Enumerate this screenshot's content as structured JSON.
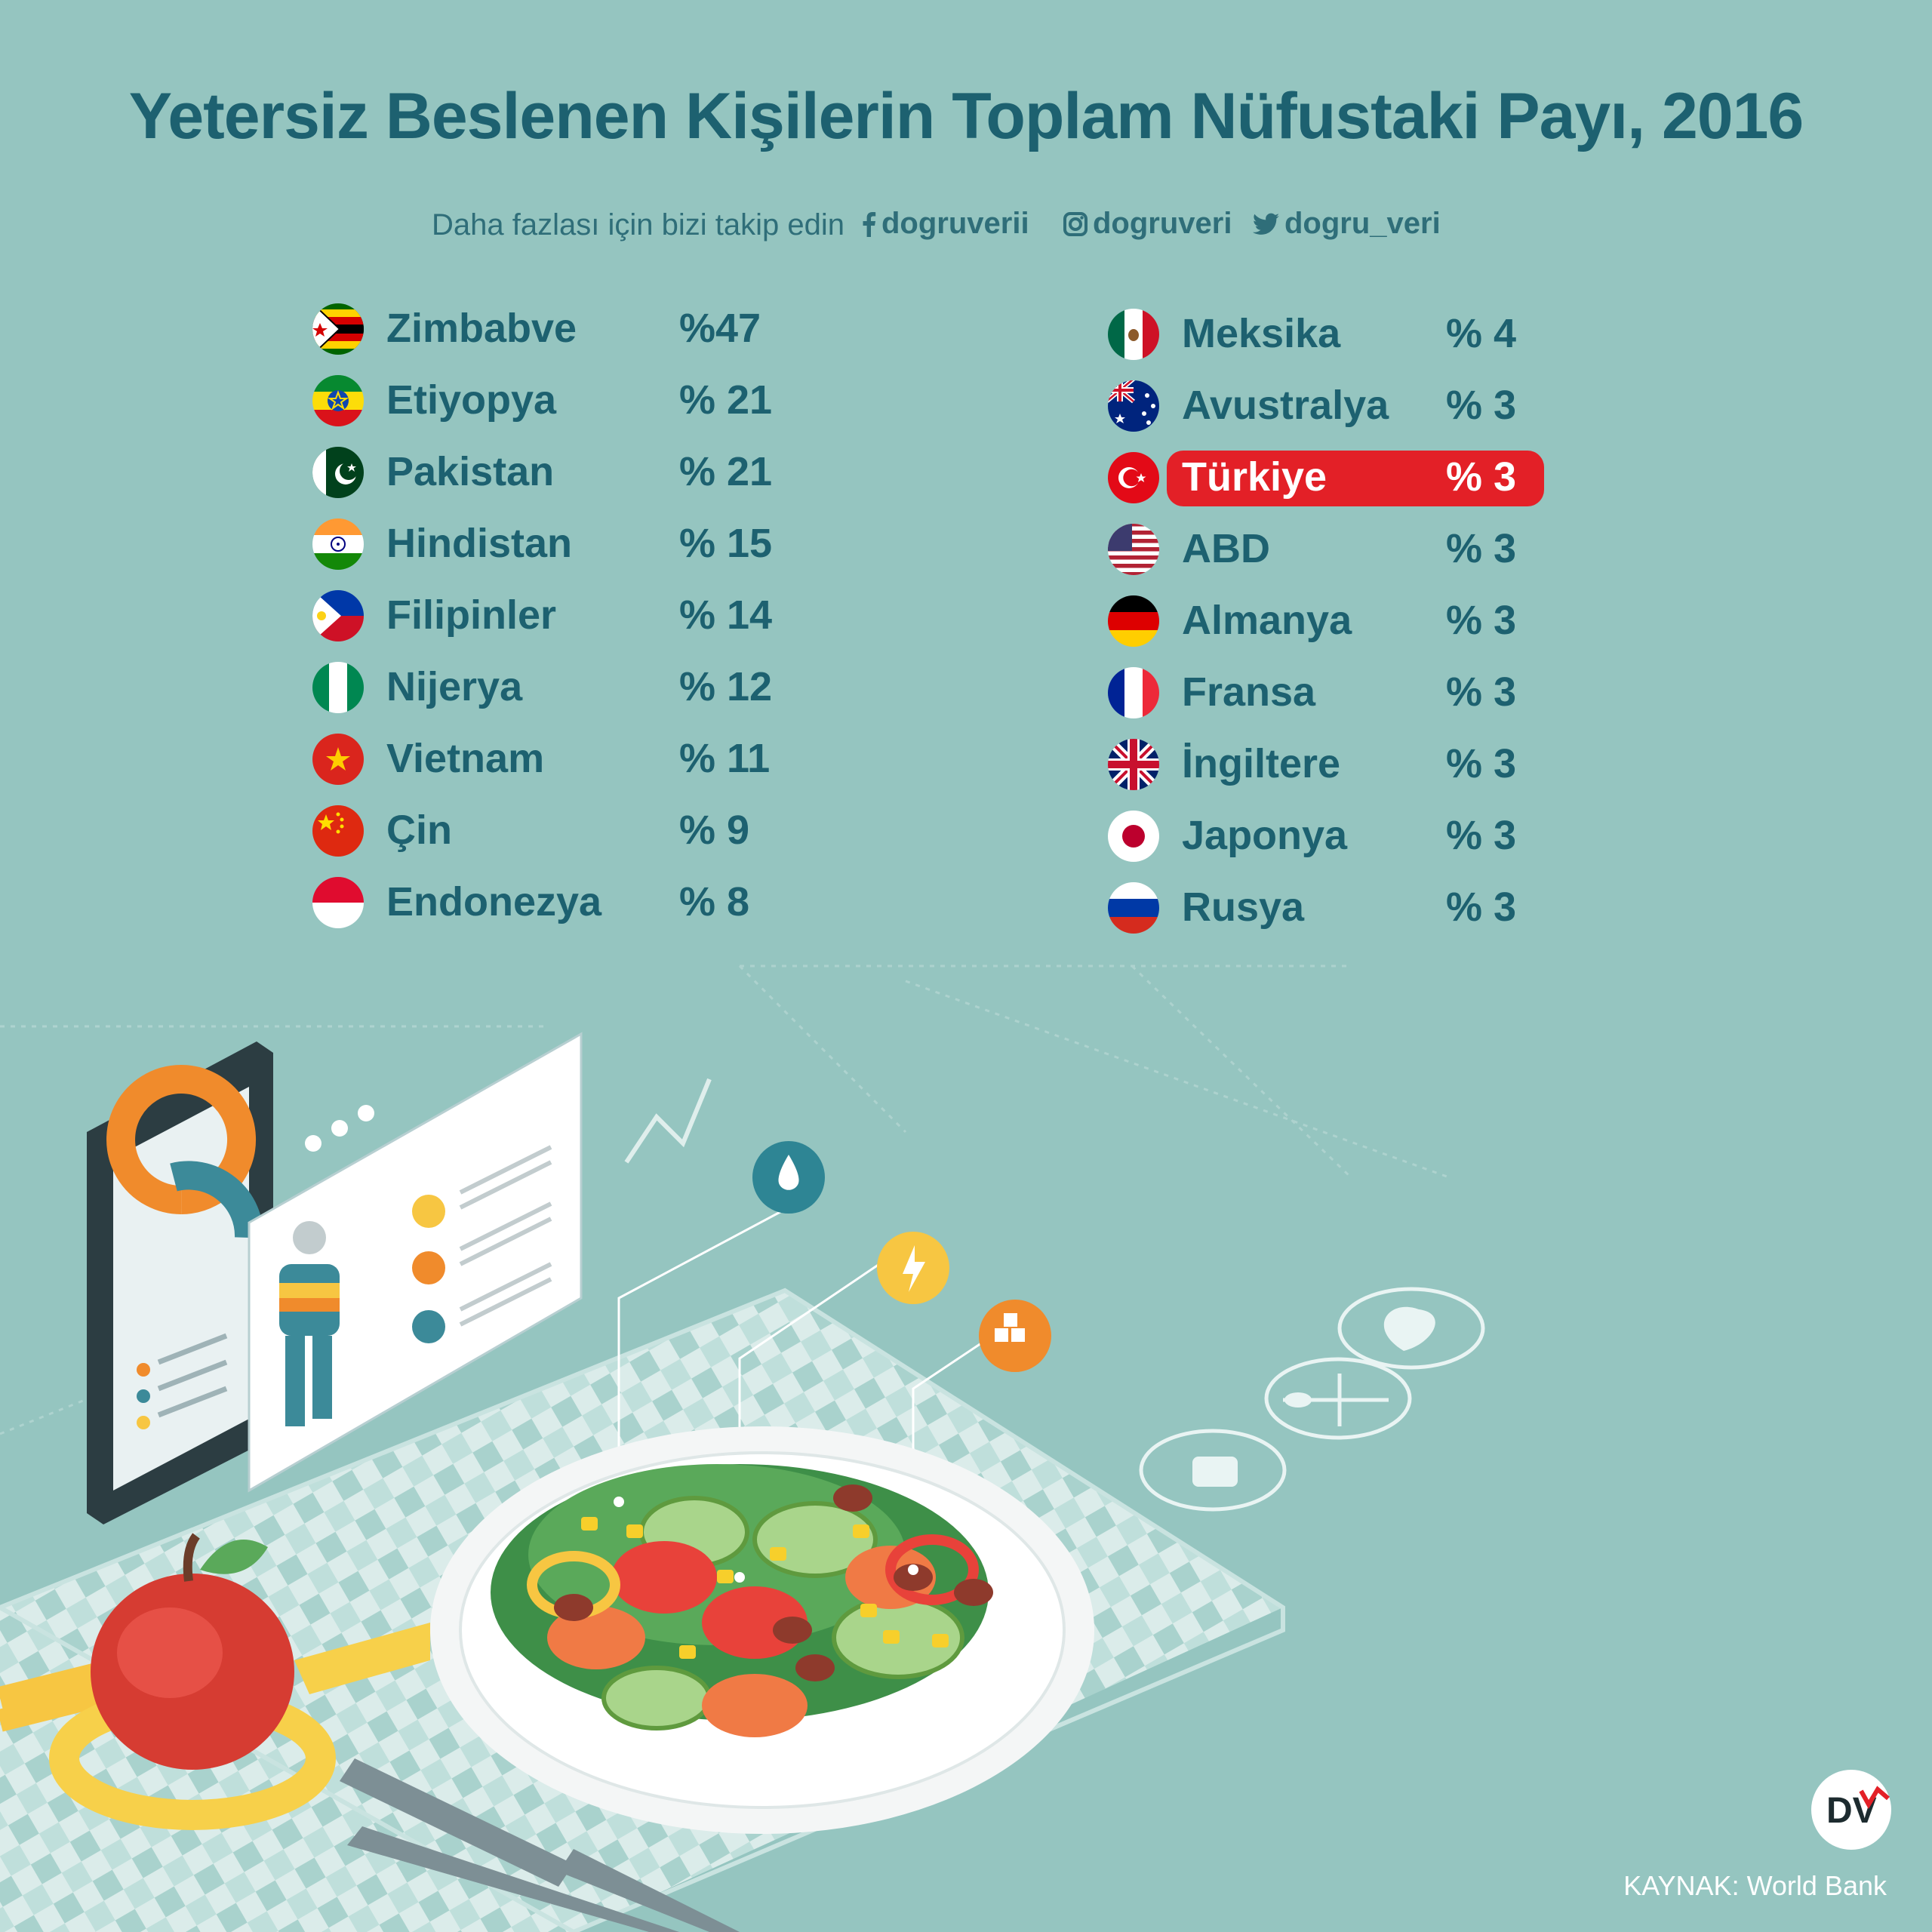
{
  "title": "Yetersiz Beslenen Kişilerin Toplam Nüfustaki Payı, 2016",
  "follow_text": "Daha fazlası için bizi takip edin",
  "social": {
    "facebook": "dogruverii",
    "instagram": "dogruveri",
    "twitter": "dogru_veri"
  },
  "highlight_country": "Türkiye",
  "source": "KAYNAK:  World Bank",
  "logo_text": "DV",
  "colors": {
    "background": "#95c5c0",
    "text": "#1d6170",
    "highlight": "#e32027"
  },
  "chart_data": {
    "type": "table",
    "title": "Yetersiz Beslenen Kişilerin Toplam Nüfustaki Payı, 2016",
    "unit": "%",
    "columns": [
      {
        "rows": [
          {
            "country": "Zimbabve",
            "label": "%47",
            "value": 47,
            "flag": "zimbabwe-flag"
          },
          {
            "country": "Etiyopya",
            "label": "% 21",
            "value": 21,
            "flag": "ethiopia-flag"
          },
          {
            "country": "Pakistan",
            "label": "% 21",
            "value": 21,
            "flag": "pakistan-flag"
          },
          {
            "country": "Hindistan",
            "label": "% 15",
            "value": 15,
            "flag": "india-flag"
          },
          {
            "country": "Filipinler",
            "label": "% 14",
            "value": 14,
            "flag": "philippines-flag"
          },
          {
            "country": "Nijerya",
            "label": "% 12",
            "value": 12,
            "flag": "nigeria-flag"
          },
          {
            "country": "Vietnam",
            "label": "% 11",
            "value": 11,
            "flag": "vietnam-flag"
          },
          {
            "country": "Çin",
            "label": "% 9",
            "value": 9,
            "flag": "china-flag"
          },
          {
            "country": "Endonezya",
            "label": "% 8",
            "value": 8,
            "flag": "indonesia-flag"
          }
        ]
      },
      {
        "rows": [
          {
            "country": "Meksika",
            "label": "% 4",
            "value": 4,
            "flag": "mexico-flag"
          },
          {
            "country": "Avustralya",
            "label": "% 3",
            "value": 3,
            "flag": "australia-flag"
          },
          {
            "country": "Türkiye",
            "label": "% 3",
            "value": 3,
            "flag": "turkey-flag"
          },
          {
            "country": "ABD",
            "label": "% 3",
            "value": 3,
            "flag": "usa-flag"
          },
          {
            "country": "Almanya",
            "label": "% 3",
            "value": 3,
            "flag": "germany-flag"
          },
          {
            "country": "Fransa",
            "label": "% 3",
            "value": 3,
            "flag": "france-flag"
          },
          {
            "country": "İngiltere",
            "label": "% 3",
            "value": 3,
            "flag": "uk-flag"
          },
          {
            "country": "Japonya",
            "label": "% 3",
            "value": 3,
            "flag": "japan-flag"
          },
          {
            "country": "Rusya",
            "label": "% 3",
            "value": 3,
            "flag": "russia-flag"
          }
        ]
      }
    ]
  }
}
